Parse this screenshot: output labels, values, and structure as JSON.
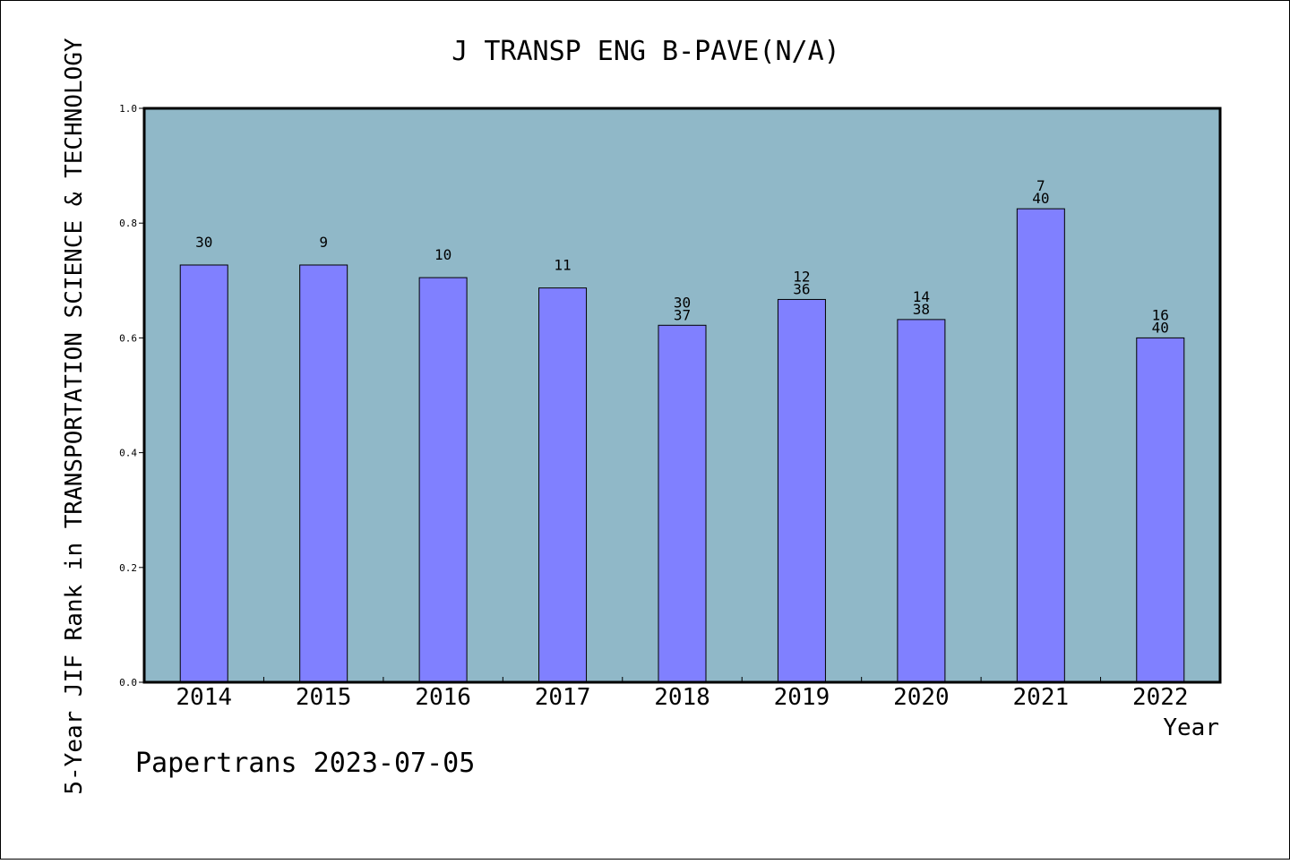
{
  "footer": {
    "credit": "Papertrans 2023-07-05"
  },
  "chart_data": {
    "type": "bar",
    "title": "J TRANSP ENG B-PAVE(N/A)",
    "xlabel": "Year",
    "ylabel": "5-Year JIF Rank in TRANSPORTATION SCIENCE & TECHNOLOGY",
    "categories": [
      "2014",
      "2015",
      "2016",
      "2017",
      "2018",
      "2019",
      "2020",
      "2021",
      "2022"
    ],
    "values": [
      0.727,
      0.727,
      0.705,
      0.687,
      0.622,
      0.667,
      0.632,
      0.825,
      0.6
    ],
    "bar_labels": [
      [
        "30"
      ],
      [
        "9"
      ],
      [
        "10"
      ],
      [
        "11"
      ],
      [
        "30",
        "37"
      ],
      [
        "12",
        "36"
      ],
      [
        "14",
        "38"
      ],
      [
        "7",
        "40"
      ],
      [
        "16",
        "40"
      ]
    ],
    "ylim": [
      0,
      1.0
    ],
    "yticks": [
      "0.0",
      "0.2",
      "0.4",
      "0.6",
      "0.8",
      "1.0"
    ],
    "grid": false,
    "colors": {
      "plot_background": "#90b8c8",
      "bar_fill": "#8080ff",
      "bar_stroke": "#000000"
    }
  }
}
